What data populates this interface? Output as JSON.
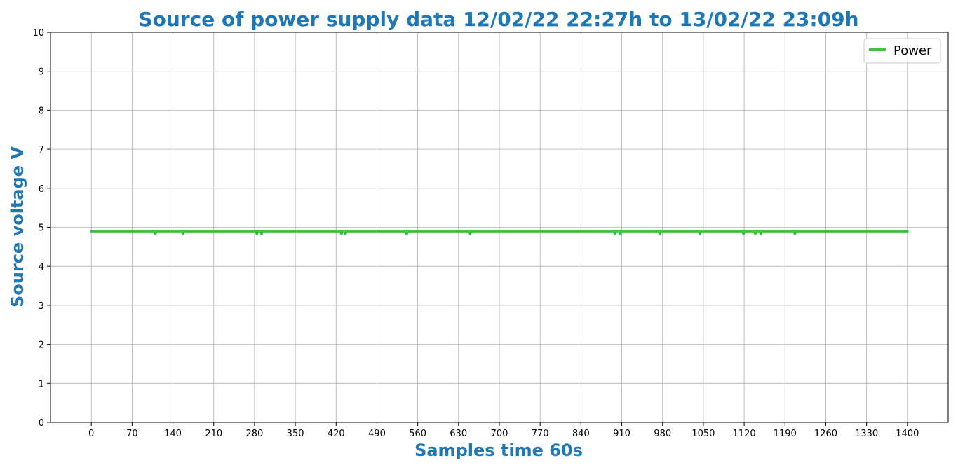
{
  "chart_data": {
    "type": "line",
    "title": "Source of power supply data 12/02/22 22:27h to 13/02/22 23:09h",
    "xlabel": "Samples time 60s",
    "ylabel": "Source voltage V",
    "xlim": [
      -70,
      1470
    ],
    "ylim": [
      0,
      10
    ],
    "xticks": [
      0,
      70,
      140,
      210,
      280,
      350,
      420,
      490,
      560,
      630,
      700,
      770,
      840,
      910,
      980,
      1050,
      1120,
      1190,
      1260,
      1330,
      1400
    ],
    "yticks": [
      0,
      1,
      2,
      3,
      4,
      5,
      6,
      7,
      8,
      9,
      10
    ],
    "grid": true,
    "legend_position": "top-right",
    "series": [
      {
        "name": "Power",
        "color": "#3cc43c",
        "baseline": 4.9,
        "x_start": 0,
        "x_end": 1400,
        "dips": [
          {
            "x": 110,
            "value": 4.82
          },
          {
            "x": 157,
            "value": 4.82
          },
          {
            "x": 284,
            "value": 4.82
          },
          {
            "x": 292,
            "value": 4.82
          },
          {
            "x": 429,
            "value": 4.82
          },
          {
            "x": 436,
            "value": 4.82
          },
          {
            "x": 541,
            "value": 4.82
          },
          {
            "x": 650,
            "value": 4.82
          },
          {
            "x": 898,
            "value": 4.82
          },
          {
            "x": 907,
            "value": 4.82
          },
          {
            "x": 975,
            "value": 4.82
          },
          {
            "x": 1044,
            "value": 4.82
          },
          {
            "x": 1119,
            "value": 4.82
          },
          {
            "x": 1139,
            "value": 4.82
          },
          {
            "x": 1149,
            "value": 4.82
          },
          {
            "x": 1207,
            "value": 4.82
          }
        ]
      }
    ]
  }
}
